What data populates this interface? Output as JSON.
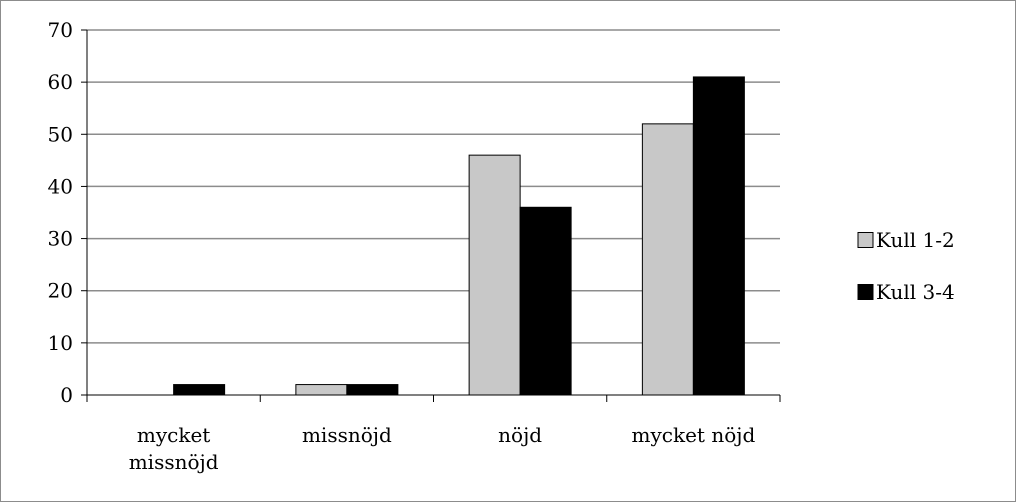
{
  "chart_data": {
    "type": "bar",
    "categories": [
      "mycket missnöjd",
      "missnöjd",
      "nöjd",
      "mycket nöjd"
    ],
    "category_lines": [
      [
        "mycket",
        "missnöjd"
      ],
      [
        "missnöjd"
      ],
      [
        "nöjd"
      ],
      [
        "mycket nöjd"
      ]
    ],
    "series": [
      {
        "name": "Kull 1-2",
        "values": [
          0,
          2,
          46,
          52
        ],
        "color": "#c8c8c8"
      },
      {
        "name": "Kull 3-4",
        "values": [
          2,
          2,
          36,
          61
        ],
        "color": "#000000"
      }
    ],
    "y_ticks": [
      "0",
      "10",
      "20",
      "30",
      "40",
      "50",
      "60",
      "70"
    ],
    "ylim": [
      0,
      70
    ],
    "grid": true,
    "legend_position": "right"
  }
}
